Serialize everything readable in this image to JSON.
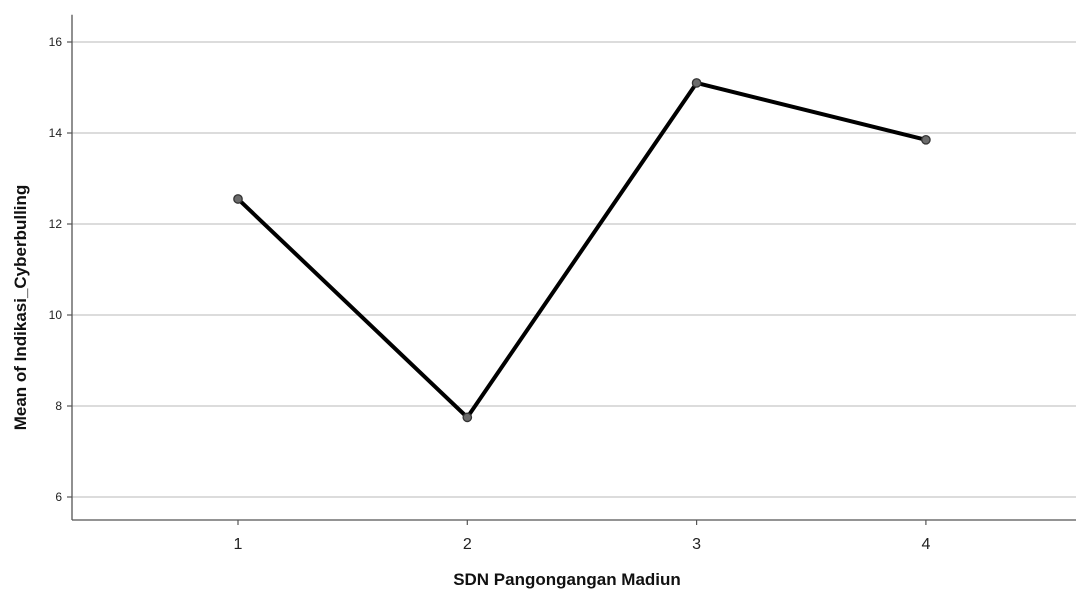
{
  "chart_data": {
    "type": "line",
    "title": "",
    "xlabel": "SDN Pangongangan Madiun",
    "ylabel": "Mean of Indikasi_Cyberbulling",
    "categories": [
      "1",
      "2",
      "3",
      "4"
    ],
    "series": [
      {
        "values": [
          12.55,
          7.75,
          15.1,
          13.85
        ]
      }
    ],
    "yticks": [
      6,
      8,
      10,
      12,
      14,
      16
    ],
    "ylim": [
      5.5,
      16.6
    ],
    "grid": true,
    "legend": "none",
    "colors": {
      "line": "#000000",
      "marker_fill": "#6b6b6b",
      "grid": "#c8c8c8",
      "axis": "#555555"
    }
  }
}
